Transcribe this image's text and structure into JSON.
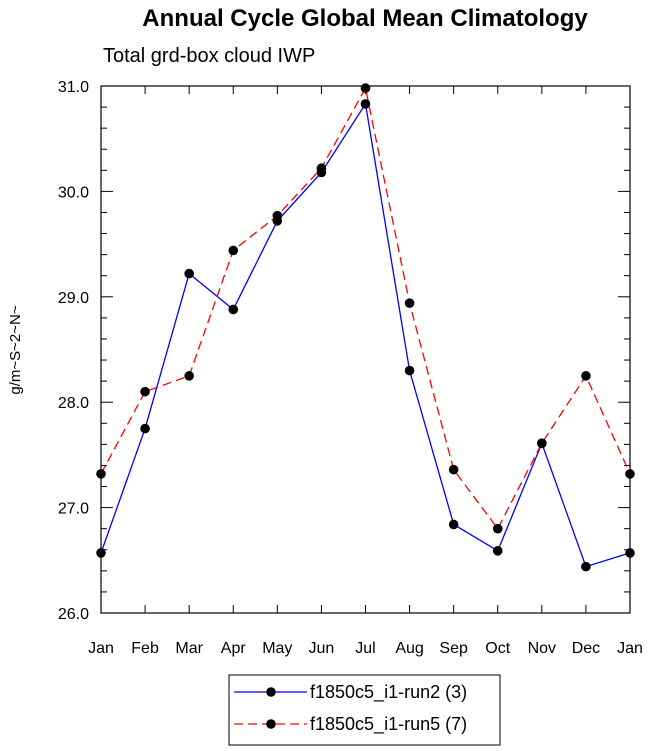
{
  "chart_data": {
    "type": "line",
    "title": "Annual Cycle Global Mean Climatology",
    "subtitle": "Total grd-box cloud IWP",
    "xlabel": "",
    "ylabel": "g/m~S~2~N~",
    "categories": [
      "Jan",
      "Feb",
      "Mar",
      "Apr",
      "May",
      "Jun",
      "Jul",
      "Aug",
      "Sep",
      "Oct",
      "Nov",
      "Dec",
      "Jan"
    ],
    "ylim": [
      26.0,
      31.0
    ],
    "yticks": [
      26.0,
      27.0,
      28.0,
      29.0,
      30.0,
      31.0
    ],
    "ytick_labels": [
      "26.0",
      "27.0",
      "28.0",
      "29.0",
      "30.0",
      "31.0"
    ],
    "grid": false,
    "legend_position": "bottom-center",
    "series": [
      {
        "name": "f1850c5_i1-run2 (3)",
        "values": [
          26.57,
          27.75,
          29.22,
          28.88,
          29.72,
          30.18,
          30.83,
          28.3,
          26.84,
          26.59,
          27.61,
          26.44,
          26.57
        ],
        "color": "#0000ff",
        "dash": "solid",
        "marker": "filled-circle"
      },
      {
        "name": "f1850c5_i1-run5 (7)",
        "values": [
          27.32,
          28.1,
          28.25,
          29.44,
          29.77,
          30.22,
          30.98,
          28.94,
          27.36,
          26.8,
          27.61,
          28.25,
          27.32
        ],
        "color": "#ff0000",
        "dash": "dashed",
        "marker": "filled-circle"
      }
    ]
  }
}
